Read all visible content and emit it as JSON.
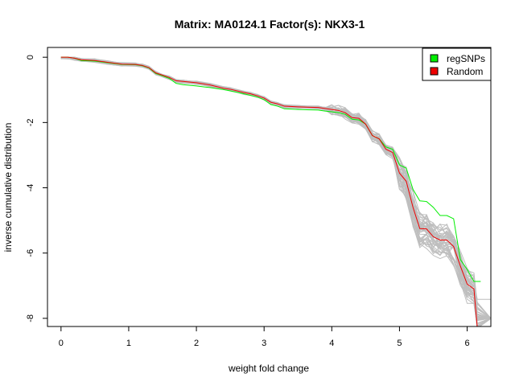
{
  "chart_data": {
    "type": "line",
    "title": "Matrix: MA0124.1 Factor(s): NKX3-1",
    "xlabel": "weight fold change",
    "ylabel": "inverse cumulative distribution",
    "xlim": [
      -0.2,
      6.35
    ],
    "ylim": [
      -8.25,
      0.3
    ],
    "x_ticks": [
      0,
      1,
      2,
      3,
      4,
      5,
      6
    ],
    "y_ticks": [
      0,
      -2,
      -4,
      -6,
      -8
    ],
    "legend": {
      "position": "top-right",
      "entries": [
        {
          "label": "regSNPs",
          "color": "#00ee00"
        },
        {
          "label": "Random",
          "color": "#ee0000"
        }
      ]
    },
    "grid": false,
    "series": [
      {
        "name": "regSNPs",
        "color": "#00ee00",
        "points": [
          [
            0,
            0
          ],
          [
            0.1,
            0
          ],
          [
            0.2,
            -0.03
          ],
          [
            0.3,
            -0.1
          ],
          [
            0.5,
            -0.12
          ],
          [
            0.7,
            -0.17
          ],
          [
            0.9,
            -0.22
          ],
          [
            1.1,
            -0.23
          ],
          [
            1.2,
            -0.26
          ],
          [
            1.3,
            -0.33
          ],
          [
            1.4,
            -0.5
          ],
          [
            1.5,
            -0.57
          ],
          [
            1.6,
            -0.65
          ],
          [
            1.7,
            -0.8
          ],
          [
            1.8,
            -0.84
          ],
          [
            2.0,
            -0.88
          ],
          [
            2.2,
            -0.93
          ],
          [
            2.4,
            -0.99
          ],
          [
            2.5,
            -1.03
          ],
          [
            2.7,
            -1.12
          ],
          [
            2.8,
            -1.17
          ],
          [
            2.9,
            -1.22
          ],
          [
            3.0,
            -1.3
          ],
          [
            3.1,
            -1.45
          ],
          [
            3.2,
            -1.5
          ],
          [
            3.3,
            -1.58
          ],
          [
            3.5,
            -1.6
          ],
          [
            3.8,
            -1.62
          ],
          [
            3.9,
            -1.65
          ],
          [
            4.0,
            -1.67
          ],
          [
            4.1,
            -1.7
          ],
          [
            4.2,
            -1.75
          ],
          [
            4.3,
            -1.9
          ],
          [
            4.4,
            -1.92
          ],
          [
            4.5,
            -2.05
          ],
          [
            4.6,
            -2.4
          ],
          [
            4.7,
            -2.5
          ],
          [
            4.8,
            -2.75
          ],
          [
            4.9,
            -2.82
          ],
          [
            5.0,
            -3.3
          ],
          [
            5.1,
            -3.4
          ],
          [
            5.2,
            -4.05
          ],
          [
            5.3,
            -4.4
          ],
          [
            5.4,
            -4.42
          ],
          [
            5.5,
            -4.6
          ],
          [
            5.6,
            -4.85
          ],
          [
            5.7,
            -4.85
          ],
          [
            5.8,
            -4.95
          ],
          [
            5.9,
            -6.2
          ],
          [
            6.0,
            -6.5
          ],
          [
            6.1,
            -6.87
          ],
          [
            6.2,
            -6.87
          ]
        ]
      },
      {
        "name": "Random",
        "color": "#ee0000",
        "points": [
          [
            0,
            0
          ],
          [
            0.1,
            0
          ],
          [
            0.2,
            -0.03
          ],
          [
            0.3,
            -0.08
          ],
          [
            0.5,
            -0.1
          ],
          [
            0.7,
            -0.16
          ],
          [
            0.9,
            -0.21
          ],
          [
            1.1,
            -0.22
          ],
          [
            1.2,
            -0.25
          ],
          [
            1.3,
            -0.32
          ],
          [
            1.4,
            -0.48
          ],
          [
            1.5,
            -0.55
          ],
          [
            1.6,
            -0.62
          ],
          [
            1.7,
            -0.72
          ],
          [
            1.8,
            -0.74
          ],
          [
            2.0,
            -0.78
          ],
          [
            2.2,
            -0.85
          ],
          [
            2.4,
            -0.95
          ],
          [
            2.5,
            -0.98
          ],
          [
            2.7,
            -1.08
          ],
          [
            2.8,
            -1.12
          ],
          [
            2.9,
            -1.18
          ],
          [
            3.0,
            -1.25
          ],
          [
            3.1,
            -1.38
          ],
          [
            3.2,
            -1.43
          ],
          [
            3.3,
            -1.5
          ],
          [
            3.5,
            -1.52
          ],
          [
            3.8,
            -1.54
          ],
          [
            3.9,
            -1.57
          ],
          [
            4.0,
            -1.6
          ],
          [
            4.1,
            -1.63
          ],
          [
            4.2,
            -1.7
          ],
          [
            4.3,
            -1.85
          ],
          [
            4.4,
            -1.87
          ],
          [
            4.5,
            -2.05
          ],
          [
            4.6,
            -2.4
          ],
          [
            4.7,
            -2.5
          ],
          [
            4.8,
            -2.82
          ],
          [
            4.9,
            -2.92
          ],
          [
            5.0,
            -3.55
          ],
          [
            5.1,
            -3.8
          ],
          [
            5.2,
            -4.6
          ],
          [
            5.3,
            -5.25
          ],
          [
            5.4,
            -5.26
          ],
          [
            5.5,
            -5.5
          ],
          [
            5.6,
            -5.6
          ],
          [
            5.7,
            -5.6
          ],
          [
            5.8,
            -5.8
          ],
          [
            5.9,
            -6.4
          ],
          [
            6.0,
            -6.95
          ],
          [
            6.1,
            -7.1
          ],
          [
            6.15,
            -8.3
          ]
        ]
      }
    ]
  }
}
